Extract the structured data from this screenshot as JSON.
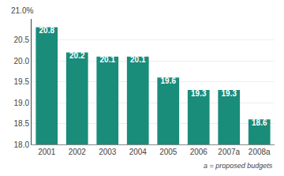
{
  "chart_data": {
    "type": "bar",
    "categories": [
      "2001",
      "2002",
      "2003",
      "2004",
      "2005",
      "2006",
      "2007a",
      "2008a"
    ],
    "values": [
      20.8,
      20.2,
      20.1,
      20.1,
      19.6,
      19.3,
      19.3,
      18.6
    ],
    "color": "#1a8c7a",
    "ylim": [
      18.0,
      21.0
    ],
    "yticks": [
      {
        "value": 18,
        "label": "18.0"
      },
      18.5,
      {
        "value": 19,
        "label": "19.0"
      },
      19.5,
      {
        "value": 20,
        "label": "20.0"
      },
      20.5
    ],
    "grid": true,
    "data_labels": true,
    "annotations": [
      "21.0%",
      "a = proposed budgets"
    ]
  }
}
